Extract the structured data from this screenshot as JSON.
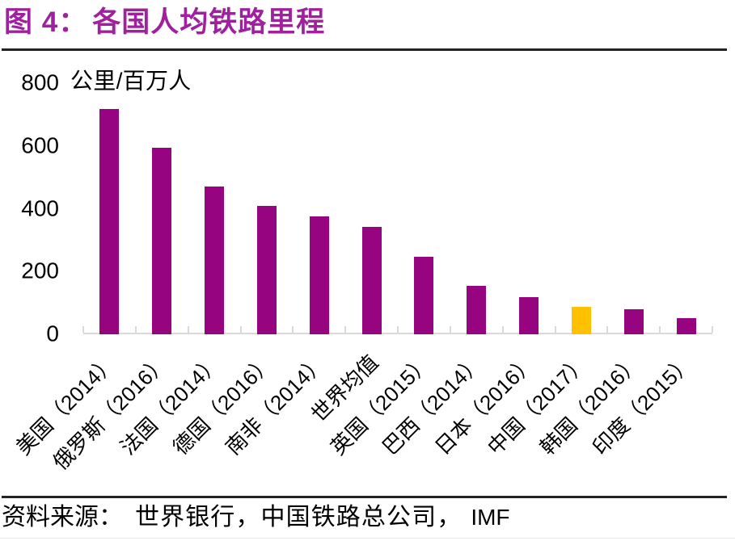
{
  "figure": {
    "title_prefix": "图 4：",
    "title": "各国人均铁路里程",
    "source_label": "资料来源：",
    "source_body": "世界银行，中国铁路总公司，",
    "source_latin": "IMF"
  },
  "chart_data": {
    "type": "bar",
    "title": "各国人均铁路里程",
    "ylabel": "公里/百万人",
    "xlabel": "",
    "categories": [
      "美国（2014）",
      "俄罗斯（2016）",
      "法国（2014）",
      "德国（2016）",
      "南非（2014）",
      "世界均值",
      "英国（2015）",
      "巴西（2014）",
      "日本（2016）",
      "中国（2017）",
      "韩国（2016）",
      "印度（2015）"
    ],
    "values": [
      719,
      594,
      471,
      408,
      376,
      342,
      248,
      155,
      118,
      87,
      81,
      52
    ],
    "ylim": [
      0,
      800
    ],
    "yticks": [
      0,
      200,
      400,
      600,
      800
    ],
    "grid": false,
    "legend": false,
    "bar_color": "#970480",
    "highlight_color": "#FFC000",
    "highlight_category": "中国（2017）"
  },
  "colors": {
    "title_text": "#A0219E",
    "rule": "#222222",
    "axis_line": "#D9D9D9",
    "bottom_edge": "#E9E9E9",
    "chart_text": "#000000"
  }
}
